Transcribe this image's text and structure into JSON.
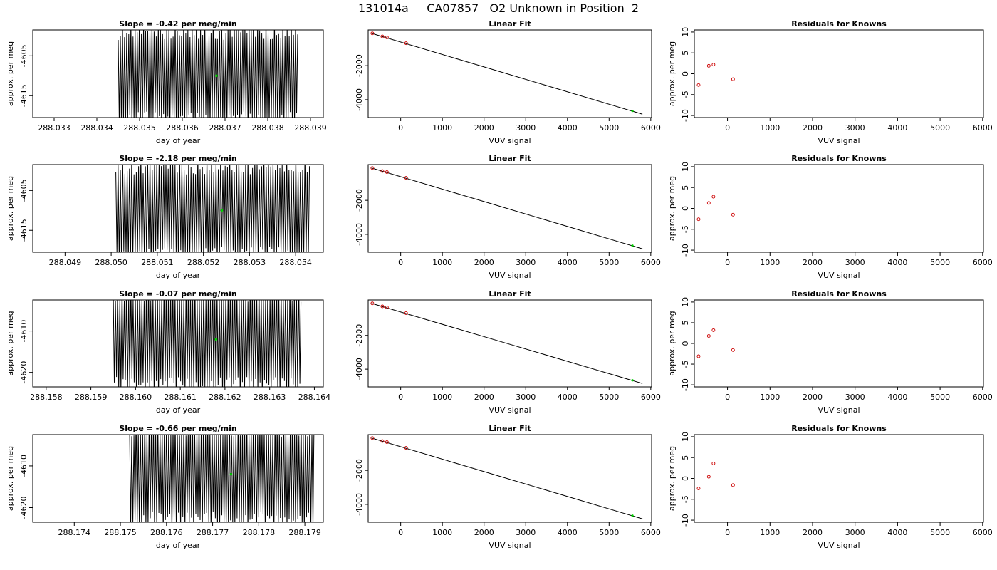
{
  "header": {
    "title": "131014a     CA07857   O2 Unknown in Position  2"
  },
  "colors": {
    "line": "#000000",
    "known_point": "#cc0000",
    "unknown_point": "#00cc00",
    "axis": "#000000"
  },
  "chart_data": [
    {
      "type": "line",
      "row": 1,
      "panel": "time-series",
      "title": "Slope =  -0.42  per meg/min",
      "xlabel": "day of year",
      "ylabel": "approx. per meg",
      "xlim": [
        288.0325,
        288.0393
      ],
      "ylim": [
        -4620.5,
        -4598.5
      ],
      "xticks": [
        288.033,
        288.034,
        288.035,
        288.036,
        288.037,
        288.038,
        288.039
      ],
      "xtick_labels": [
        "288.033",
        "288.034",
        "288.035",
        "288.036",
        "288.037",
        "288.038",
        "288.039"
      ],
      "yticks": [
        -4605,
        -4615
      ],
      "ytick_labels": [
        "-4605",
        "-4615"
      ],
      "data_xrange": [
        288.0345,
        288.0387
      ],
      "mean_point": {
        "x": 288.0368,
        "y": -4610
      },
      "approx_amplitude": 12
    },
    {
      "type": "scatter",
      "row": 1,
      "panel": "linear-fit",
      "title": "Linear Fit",
      "xlabel": "VUV signal",
      "ylabel": "",
      "xlim": [
        -780,
        6020
      ],
      "ylim": [
        -5050,
        100
      ],
      "xticks": [
        0,
        1000,
        2000,
        3000,
        4000,
        5000,
        6000
      ],
      "xtick_labels": [
        "0",
        "1000",
        "2000",
        "3000",
        "4000",
        "5000",
        "6000"
      ],
      "yticks": [
        -2000,
        -4000
      ],
      "ytick_labels": [
        "-2000",
        "-4000"
      ],
      "fit_line": {
        "x": [
          -700,
          5800
        ],
        "y": [
          -100,
          -4850
        ]
      },
      "knowns": {
        "x": [
          -680,
          -440,
          -330,
          130
        ],
        "y": [
          -100,
          -280,
          -340,
          -680
        ]
      },
      "unknown": {
        "x": [
          5560
        ],
        "y": [
          -4660
        ]
      }
    },
    {
      "type": "scatter",
      "row": 1,
      "panel": "residuals",
      "title": "Residuals for Knowns",
      "xlabel": "VUV signal",
      "ylabel": "approx. per meg",
      "xlim": [
        -780,
        6020
      ],
      "ylim": [
        -10.5,
        10.5
      ],
      "xticks": [
        0,
        1000,
        2000,
        3000,
        4000,
        5000,
        6000
      ],
      "xtick_labels": [
        "0",
        "1000",
        "2000",
        "3000",
        "4000",
        "5000",
        "6000"
      ],
      "yticks": [
        10,
        5,
        0,
        -5,
        -10
      ],
      "ytick_labels": [
        "10",
        "5",
        "0",
        "-5",
        "-10"
      ],
      "points": {
        "x": [
          -680,
          -440,
          -330,
          130
        ],
        "y": [
          -2.7,
          1.9,
          2.2,
          -1.3
        ]
      }
    },
    {
      "type": "line",
      "row": 2,
      "panel": "time-series",
      "title": "Slope =  -2.18  per meg/min",
      "xlabel": "day of year",
      "ylabel": "approx. per meg",
      "xlim": [
        288.0483,
        288.0546
      ],
      "ylim": [
        -4620.5,
        -4598.5
      ],
      "xticks": [
        288.049,
        288.05,
        288.051,
        288.052,
        288.053,
        288.054
      ],
      "xtick_labels": [
        "288.049",
        "288.050",
        "288.051",
        "288.052",
        "288.053",
        "288.054"
      ],
      "yticks": [
        -4605,
        -4615
      ],
      "ytick_labels": [
        "-4605",
        "-4615"
      ],
      "data_xrange": [
        288.0501,
        288.0543
      ],
      "mean_point": {
        "x": 288.0524,
        "y": -4610
      },
      "approx_amplitude": 12
    },
    {
      "type": "scatter",
      "row": 2,
      "panel": "linear-fit",
      "title": "Linear Fit",
      "xlabel": "VUV signal",
      "ylabel": "",
      "xlim": [
        -780,
        6020
      ],
      "ylim": [
        -5050,
        100
      ],
      "xticks": [
        0,
        1000,
        2000,
        3000,
        4000,
        5000,
        6000
      ],
      "xtick_labels": [
        "0",
        "1000",
        "2000",
        "3000",
        "4000",
        "5000",
        "6000"
      ],
      "yticks": [
        -2000,
        -4000
      ],
      "ytick_labels": [
        "-2000",
        "-4000"
      ],
      "fit_line": {
        "x": [
          -700,
          5800
        ],
        "y": [
          -100,
          -4850
        ]
      },
      "knowns": {
        "x": [
          -680,
          -440,
          -330,
          130
        ],
        "y": [
          -100,
          -280,
          -340,
          -680
        ]
      },
      "unknown": {
        "x": [
          5560
        ],
        "y": [
          -4660
        ]
      }
    },
    {
      "type": "scatter",
      "row": 2,
      "panel": "residuals",
      "title": "Residuals for Knowns",
      "xlabel": "VUV signal",
      "ylabel": "approx. per meg",
      "xlim": [
        -780,
        6020
      ],
      "ylim": [
        -10.5,
        10.5
      ],
      "xticks": [
        0,
        1000,
        2000,
        3000,
        4000,
        5000,
        6000
      ],
      "xtick_labels": [
        "0",
        "1000",
        "2000",
        "3000",
        "4000",
        "5000",
        "6000"
      ],
      "yticks": [
        10,
        5,
        0,
        -5,
        -10
      ],
      "ytick_labels": [
        "10",
        "5",
        "0",
        "-5",
        "-10"
      ],
      "points": {
        "x": [
          -680,
          -440,
          -330,
          130
        ],
        "y": [
          -2.6,
          1.3,
          2.8,
          -1.5
        ]
      }
    },
    {
      "type": "line",
      "row": 3,
      "panel": "time-series",
      "title": "Slope =  -0.07  per meg/min",
      "xlabel": "day of year",
      "ylabel": "approx. per meg",
      "xlim": [
        288.1577,
        288.1642
      ],
      "ylim": [
        -4623.5,
        -4602.5
      ],
      "xticks": [
        288.158,
        288.159,
        288.16,
        288.161,
        288.162,
        288.163,
        288.164
      ],
      "xtick_labels": [
        "288.158",
        "288.159",
        "288.160",
        "288.161",
        "288.162",
        "288.163",
        "288.164"
      ],
      "yticks": [
        -4610,
        -4620
      ],
      "ytick_labels": [
        "-4610",
        "-4620"
      ],
      "data_xrange": [
        288.1595,
        288.1637
      ],
      "mean_point": {
        "x": 288.1618,
        "y": -4612
      },
      "approx_amplitude": 12
    },
    {
      "type": "scatter",
      "row": 3,
      "panel": "linear-fit",
      "title": "Linear Fit",
      "xlabel": "VUV signal",
      "ylabel": "",
      "xlim": [
        -780,
        6020
      ],
      "ylim": [
        -5050,
        100
      ],
      "xticks": [
        0,
        1000,
        2000,
        3000,
        4000,
        5000,
        6000
      ],
      "xtick_labels": [
        "0",
        "1000",
        "2000",
        "3000",
        "4000",
        "5000",
        "6000"
      ],
      "yticks": [
        -2000,
        -4000
      ],
      "ytick_labels": [
        "-2000",
        "-4000"
      ],
      "fit_line": {
        "x": [
          -700,
          5800
        ],
        "y": [
          -100,
          -4850
        ]
      },
      "knowns": {
        "x": [
          -680,
          -440,
          -330,
          130
        ],
        "y": [
          -100,
          -280,
          -340,
          -680
        ]
      },
      "unknown": {
        "x": [
          5560
        ],
        "y": [
          -4660
        ]
      }
    },
    {
      "type": "scatter",
      "row": 3,
      "panel": "residuals",
      "title": "Residuals for Knowns",
      "xlabel": "VUV signal",
      "ylabel": "approx. per meg",
      "xlim": [
        -780,
        6020
      ],
      "ylim": [
        -10.5,
        10.5
      ],
      "xticks": [
        0,
        1000,
        2000,
        3000,
        4000,
        5000,
        6000
      ],
      "xtick_labels": [
        "0",
        "1000",
        "2000",
        "3000",
        "4000",
        "5000",
        "6000"
      ],
      "yticks": [
        10,
        5,
        0,
        -5,
        -10
      ],
      "ytick_labels": [
        "10",
        "5",
        "0",
        "-5",
        "-10"
      ],
      "points": {
        "x": [
          -680,
          -440,
          -330,
          130
        ],
        "y": [
          -3.1,
          1.8,
          3.2,
          -1.6
        ]
      }
    },
    {
      "type": "line",
      "row": 4,
      "panel": "time-series",
      "title": "Slope =  -0.66  per meg/min",
      "xlabel": "day of year",
      "ylabel": "approx. per meg",
      "xlim": [
        288.1731,
        288.1794
      ],
      "ylim": [
        -4623.5,
        -4602.5
      ],
      "xticks": [
        288.174,
        288.175,
        288.176,
        288.177,
        288.178,
        288.179
      ],
      "xtick_labels": [
        "288.174",
        "288.175",
        "288.176",
        "288.177",
        "288.178",
        "288.179"
      ],
      "yticks": [
        -4610,
        -4620
      ],
      "ytick_labels": [
        "-4610",
        "-4620"
      ],
      "data_xrange": [
        288.1752,
        288.1792
      ],
      "mean_point": {
        "x": 288.1774,
        "y": -4612
      },
      "approx_amplitude": 12
    },
    {
      "type": "scatter",
      "row": 4,
      "panel": "linear-fit",
      "title": "Linear Fit",
      "xlabel": "VUV signal",
      "ylabel": "",
      "xlim": [
        -780,
        6020
      ],
      "ylim": [
        -5050,
        100
      ],
      "xticks": [
        0,
        1000,
        2000,
        3000,
        4000,
        5000,
        6000
      ],
      "xtick_labels": [
        "0",
        "1000",
        "2000",
        "3000",
        "4000",
        "5000",
        "6000"
      ],
      "yticks": [
        -2000,
        -4000
      ],
      "ytick_labels": [
        "-2000",
        "-4000"
      ],
      "fit_line": {
        "x": [
          -700,
          5800
        ],
        "y": [
          -100,
          -4850
        ]
      },
      "knowns": {
        "x": [
          -680,
          -440,
          -330,
          130
        ],
        "y": [
          -100,
          -280,
          -340,
          -680
        ]
      },
      "unknown": {
        "x": [
          5560
        ],
        "y": [
          -4660
        ]
      }
    },
    {
      "type": "scatter",
      "row": 4,
      "panel": "residuals",
      "title": "Residuals for Knowns",
      "xlabel": "VUV signal",
      "ylabel": "approx. per meg",
      "xlim": [
        -780,
        6020
      ],
      "ylim": [
        -10.5,
        10.5
      ],
      "xticks": [
        0,
        1000,
        2000,
        3000,
        4000,
        5000,
        6000
      ],
      "xtick_labels": [
        "0",
        "1000",
        "2000",
        "3000",
        "4000",
        "5000",
        "6000"
      ],
      "yticks": [
        10,
        5,
        0,
        -5,
        -10
      ],
      "ytick_labels": [
        "10",
        "5",
        "0",
        "-5",
        "-10"
      ],
      "points": {
        "x": [
          -680,
          -440,
          -330,
          130
        ],
        "y": [
          -2.4,
          0.4,
          3.6,
          -1.6
        ]
      }
    }
  ]
}
